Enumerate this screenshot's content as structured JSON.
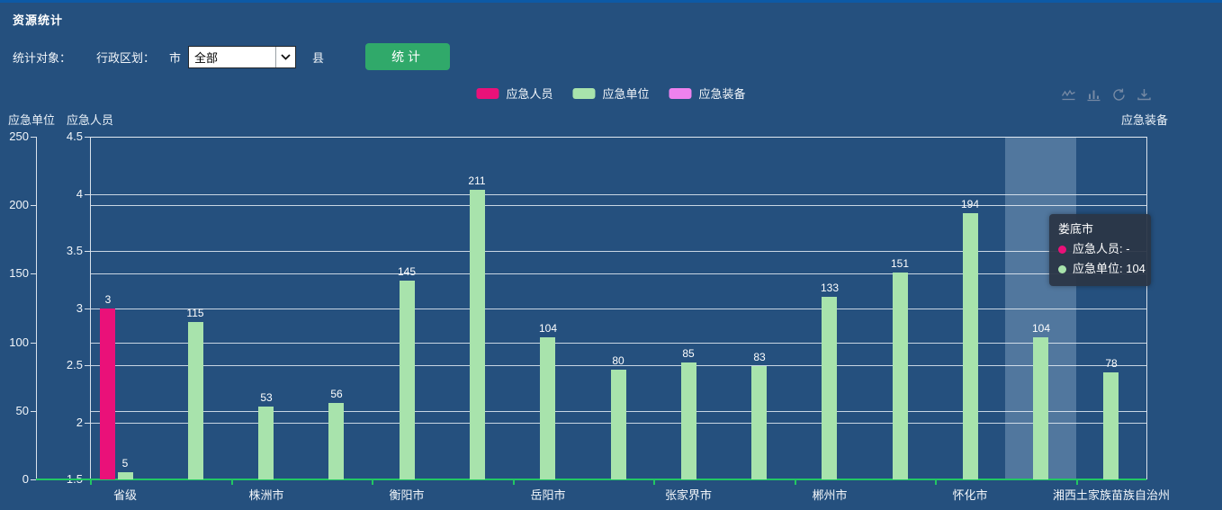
{
  "header": {
    "title": "资源统计"
  },
  "filters": {
    "stat_object_label": "统计对象：",
    "admin_division_label": "行政区划：",
    "city_label": "市",
    "city_select_value": "全部",
    "county_label": "县",
    "stat_button_label": "统计"
  },
  "legend": {
    "items": [
      {
        "label": "应急人员",
        "color": "#EA1179"
      },
      {
        "label": "应急单位",
        "color": "#A8E3AC"
      },
      {
        "label": "应急装备",
        "color": "#EE82EE"
      }
    ]
  },
  "toolbox": {
    "icons": [
      "line-chart",
      "bar-chart",
      "restore",
      "download"
    ]
  },
  "chart_data": {
    "type": "bar",
    "categories": [
      "省级",
      "",
      "株洲市",
      "",
      "衡阳市",
      "",
      "岳阳市",
      "",
      "张家界市",
      "",
      "郴州市",
      "",
      "怀化市",
      "娄底市",
      "湘西土家族苗族自治州"
    ],
    "x_label_interval": 2,
    "series": [
      {
        "name": "应急人员",
        "axis": "people",
        "color": "#EA1179",
        "values": [
          3,
          null,
          null,
          null,
          null,
          null,
          null,
          null,
          null,
          null,
          null,
          null,
          null,
          null,
          null
        ]
      },
      {
        "name": "应急单位",
        "axis": "units",
        "color": "#A8E3AC",
        "values": [
          5,
          115,
          53,
          56,
          145,
          211,
          104,
          80,
          85,
          83,
          133,
          151,
          194,
          104,
          78
        ]
      },
      {
        "name": "应急装备",
        "axis": "equipment",
        "color": "#EE82EE",
        "values": [
          null,
          null,
          null,
          null,
          null,
          null,
          null,
          null,
          null,
          null,
          null,
          null,
          null,
          null,
          null
        ]
      }
    ],
    "axes": {
      "units": {
        "name": "应急单位",
        "min": 0,
        "max": 250,
        "ticks": [
          0,
          50,
          100,
          150,
          200,
          250
        ]
      },
      "people": {
        "name": "应急人员",
        "min": 1.5,
        "max": 4.5,
        "ticks": [
          1.5,
          2,
          2.5,
          3,
          3.5,
          4,
          4.5
        ]
      },
      "equipment": {
        "name": "应急装备"
      }
    },
    "highlight_category_index": 13,
    "grid": true,
    "legend_position": "top-center"
  },
  "tooltip": {
    "title": "娄底市",
    "rows": [
      {
        "text": "应急人员: -",
        "color": "#EA1179"
      },
      {
        "text": "应急单位: 104",
        "color": "#A8E3AC"
      }
    ]
  },
  "colors": {
    "background": "#25507E",
    "top_accent": "#0D5AA6",
    "x_axis_green": "#22C763",
    "grid_line": "#E6EDF4",
    "button_green": "#30A96A",
    "hover_band": "rgba(173,200,226,0.33)",
    "tooltip_bg": "rgba(43,53,70,0.94)"
  }
}
